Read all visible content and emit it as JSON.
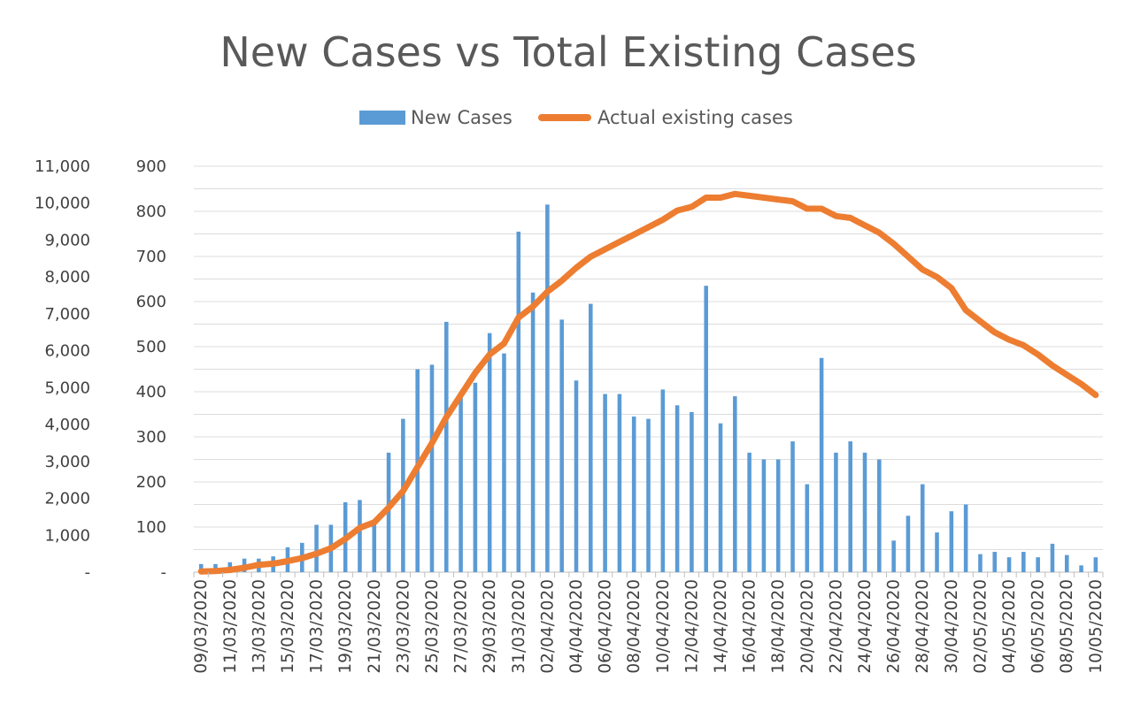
{
  "chart_data": {
    "type": "bar",
    "combo": "bar + line (secondary axis)",
    "title": "New Cases vs Total Existing Cases",
    "legend": {
      "position": "top",
      "entries": [
        "New Cases",
        "Actual existing cases"
      ]
    },
    "grid": true,
    "dates": [
      "09/03/2020",
      "10/03/2020",
      "11/03/2020",
      "12/03/2020",
      "13/03/2020",
      "14/03/2020",
      "15/03/2020",
      "16/03/2020",
      "17/03/2020",
      "18/03/2020",
      "19/03/2020",
      "20/03/2020",
      "21/03/2020",
      "22/03/2020",
      "23/03/2020",
      "24/03/2020",
      "25/03/2020",
      "26/03/2020",
      "27/03/2020",
      "28/03/2020",
      "29/03/2020",
      "30/03/2020",
      "31/03/2020",
      "01/04/2020",
      "02/04/2020",
      "03/04/2020",
      "04/04/2020",
      "05/04/2020",
      "06/04/2020",
      "07/04/2020",
      "08/04/2020",
      "09/04/2020",
      "10/04/2020",
      "11/04/2020",
      "12/04/2020",
      "13/04/2020",
      "14/04/2020",
      "15/04/2020",
      "16/04/2020",
      "17/04/2020",
      "18/04/2020",
      "19/04/2020",
      "20/04/2020",
      "21/04/2020",
      "22/04/2020",
      "23/04/2020",
      "24/04/2020",
      "25/04/2020",
      "26/04/2020",
      "27/04/2020",
      "28/04/2020",
      "29/04/2020",
      "30/04/2020",
      "01/05/2020",
      "02/05/2020",
      "03/05/2020",
      "04/05/2020",
      "05/05/2020",
      "06/05/2020",
      "07/05/2020",
      "08/05/2020",
      "09/05/2020",
      "10/05/2020"
    ],
    "x_tick_labels": [
      "09/03/2020",
      "11/03/2020",
      "13/03/2020",
      "15/03/2020",
      "17/03/2020",
      "19/03/2020",
      "21/03/2020",
      "23/03/2020",
      "25/03/2020",
      "27/03/2020",
      "29/03/2020",
      "31/03/2020",
      "02/04/2020",
      "04/04/2020",
      "06/04/2020",
      "08/04/2020",
      "10/04/2020",
      "12/04/2020",
      "14/04/2020",
      "16/04/2020",
      "18/04/2020",
      "20/04/2020",
      "22/04/2020",
      "24/04/2020",
      "26/04/2020",
      "28/04/2020",
      "30/04/2020",
      "02/05/2020",
      "04/05/2020",
      "06/05/2020",
      "08/05/2020",
      "10/05/2020"
    ],
    "series": [
      {
        "name": "New Cases",
        "type": "bar",
        "axis": "secondary (0–900)",
        "color": "#5b9bd5",
        "values": [
          18,
          18,
          22,
          30,
          30,
          35,
          55,
          65,
          105,
          105,
          155,
          160,
          105,
          265,
          340,
          450,
          460,
          555,
          390,
          420,
          530,
          485,
          755,
          620,
          815,
          560,
          425,
          595,
          395,
          395,
          345,
          340,
          405,
          370,
          355,
          635,
          330,
          390,
          265,
          250,
          250,
          290,
          195,
          475,
          265,
          290,
          265,
          250,
          70,
          125,
          195,
          88,
          135,
          150,
          40,
          45,
          33,
          45,
          33,
          63,
          38,
          15,
          33
        ]
      },
      {
        "name": "Actual existing cases",
        "type": "line",
        "axis": "primary (0–11,000)",
        "color": "#ed7d31",
        "values": [
          20,
          30,
          60,
          120,
          200,
          230,
          300,
          380,
          500,
          650,
          900,
          1200,
          1350,
          1750,
          2200,
          2850,
          3500,
          4200,
          4800,
          5400,
          5900,
          6200,
          6900,
          7200,
          7600,
          7900,
          8250,
          8550,
          8750,
          8950,
          9150,
          9350,
          9550,
          9800,
          9900,
          10150,
          10150,
          10250,
          10200,
          10150,
          10100,
          10050,
          9850,
          9850,
          9650,
          9600,
          9400,
          9200,
          8900,
          8550,
          8200,
          8000,
          7700,
          7100,
          6800,
          6500,
          6300,
          6150,
          5900,
          5600,
          5350,
          5100,
          4800
        ]
      }
    ],
    "y_axis_left": {
      "min": 0,
      "max": 11000,
      "ticks": [
        "-",
        "1,000",
        "2,000",
        "3,000",
        "4,000",
        "5,000",
        "6,000",
        "7,000",
        "8,000",
        "9,000",
        "10,000",
        "11,000"
      ]
    },
    "y_axis_right_inner": {
      "min": 0,
      "max": 900,
      "ticks": [
        "-",
        "100",
        "200",
        "300",
        "400",
        "500",
        "600",
        "700",
        "800",
        "900"
      ]
    }
  }
}
